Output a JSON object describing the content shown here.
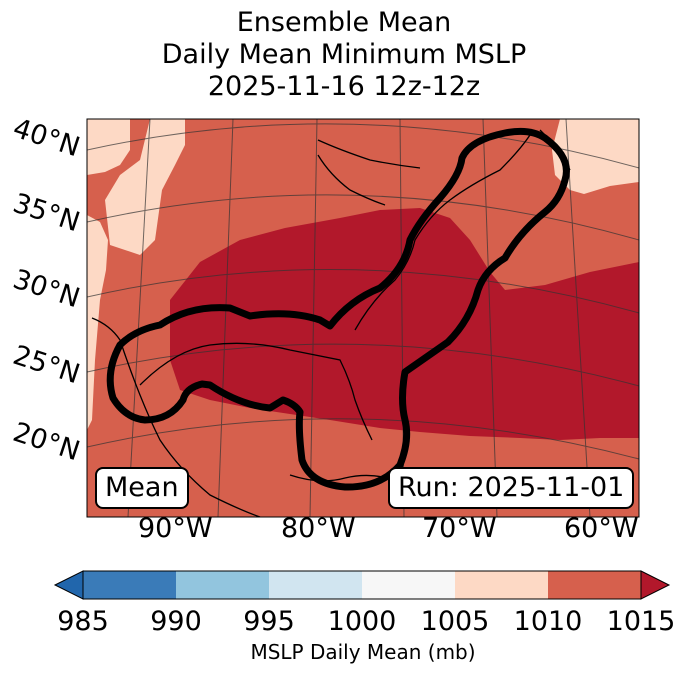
{
  "title": {
    "line1": "Ensemble Mean",
    "line2": "Daily Mean Minimum MSLP",
    "line3": "2025-11-16 12z-12z"
  },
  "lat_labels": [
    "40°N",
    "35°N",
    "30°N",
    "25°N",
    "20°N"
  ],
  "lon_labels": [
    "90°W",
    "80°W",
    "70°W",
    "60°W"
  ],
  "mean_box": "Mean",
  "run_box": "Run: 2025-11-01",
  "colorbar": {
    "label": "MSLP Daily Mean (mb)",
    "ticks": [
      "985",
      "990",
      "995",
      "1000",
      "1005",
      "1010",
      "1015"
    ],
    "colors": [
      "#3a7bb8",
      "#92c5de",
      "#d1e5f0",
      "#f7f7f7",
      "#fdd9c5",
      "#d6604d",
      "#b2182b"
    ],
    "under_color": "#2166ac",
    "over_color": "#b2182b"
  },
  "map_fills": {
    "1005-1010": "#fdd9c5",
    "1010-1015": "#d6604d",
    "over-1015": "#b2182b"
  }
}
